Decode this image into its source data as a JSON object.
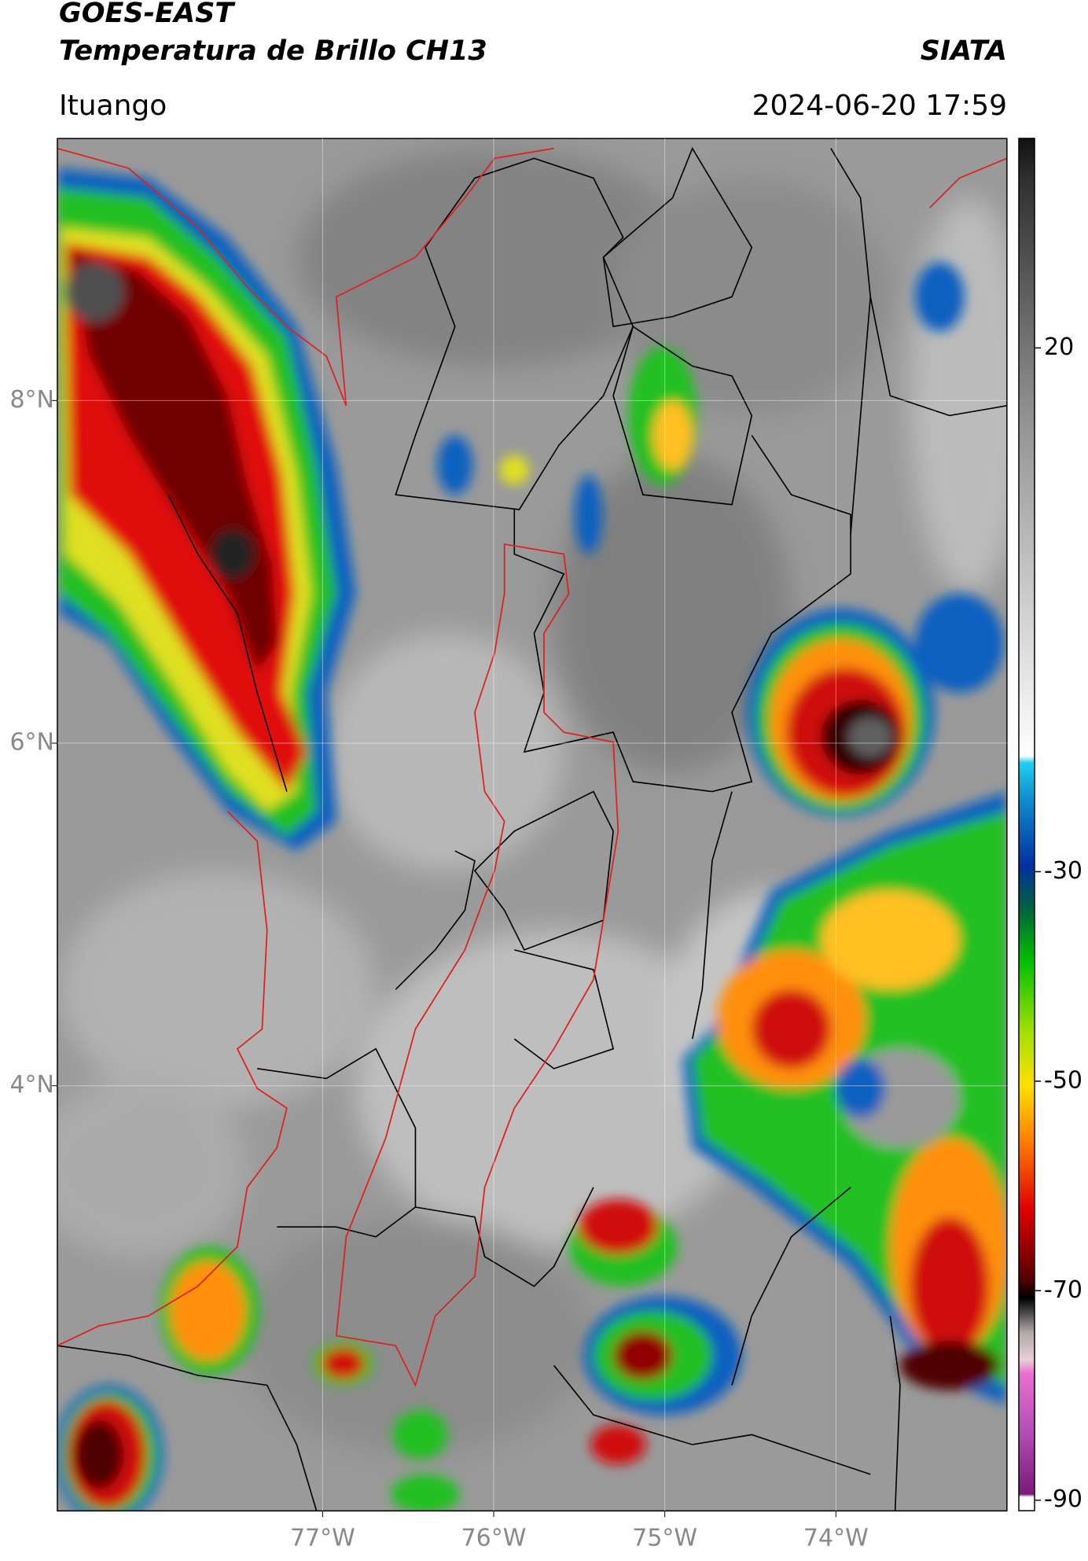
{
  "header": {
    "title": "GOES-EAST",
    "subtitle": "Temperatura de Brillo CH13",
    "brand": "SIATA",
    "location": "Ituango",
    "datetime": "2024-06-20 17:59"
  },
  "map": {
    "xlim": [
      -78.55,
      -73.0
    ],
    "ylim": [
      1.52,
      9.53
    ],
    "xticks": [
      {
        "value": -77,
        "label": "77°W"
      },
      {
        "value": -76,
        "label": "76°W"
      },
      {
        "value": -75,
        "label": "75°W"
      },
      {
        "value": -74,
        "label": "74°W"
      }
    ],
    "yticks": [
      {
        "value": 8,
        "label": "8°N"
      },
      {
        "value": 6,
        "label": "6°N"
      },
      {
        "value": 4,
        "label": "4°N"
      }
    ],
    "grid": true
  },
  "colorbar": {
    "lim": [
      -91,
      40
    ],
    "ticks": [
      20,
      -30,
      -50,
      -70,
      -90
    ]
  }
}
